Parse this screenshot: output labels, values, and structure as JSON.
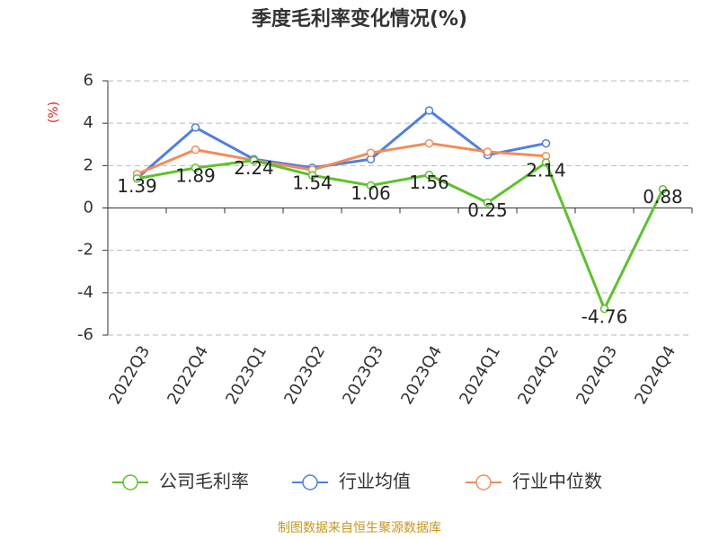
{
  "chart_data": {
    "type": "line",
    "title": "季度毛利率变化情况(%)",
    "y_label": "(%)",
    "categories": [
      "2022Q3",
      "2022Q4",
      "2023Q1",
      "2023Q2",
      "2023Q3",
      "2023Q4",
      "2024Q1",
      "2024Q2",
      "2024Q3",
      "2024Q4"
    ],
    "series": [
      {
        "name": "行业均值",
        "color": "#4e7fe0",
        "values": [
          1.4,
          3.8,
          2.3,
          1.9,
          2.3,
          4.6,
          2.5,
          3.05,
          null,
          null
        ]
      },
      {
        "name": "行业中位数",
        "color": "#f28c5a",
        "values": [
          1.6,
          2.75,
          2.25,
          1.8,
          2.6,
          3.05,
          2.65,
          2.45,
          null,
          null
        ]
      },
      {
        "name": "公司毛利率",
        "color": "#5cc22c",
        "values": [
          1.39,
          1.89,
          2.24,
          1.54,
          1.06,
          1.56,
          0.25,
          2.14,
          -4.76,
          0.88
        ],
        "data_labels": true
      }
    ],
    "legend_order": [
      2,
      0,
      1
    ],
    "ylim": [
      -6,
      6
    ],
    "yticks": [
      -6,
      -4,
      -2,
      0,
      2,
      4,
      6
    ],
    "grid": true,
    "source": "制图数据来自恒生聚源数据库"
  }
}
